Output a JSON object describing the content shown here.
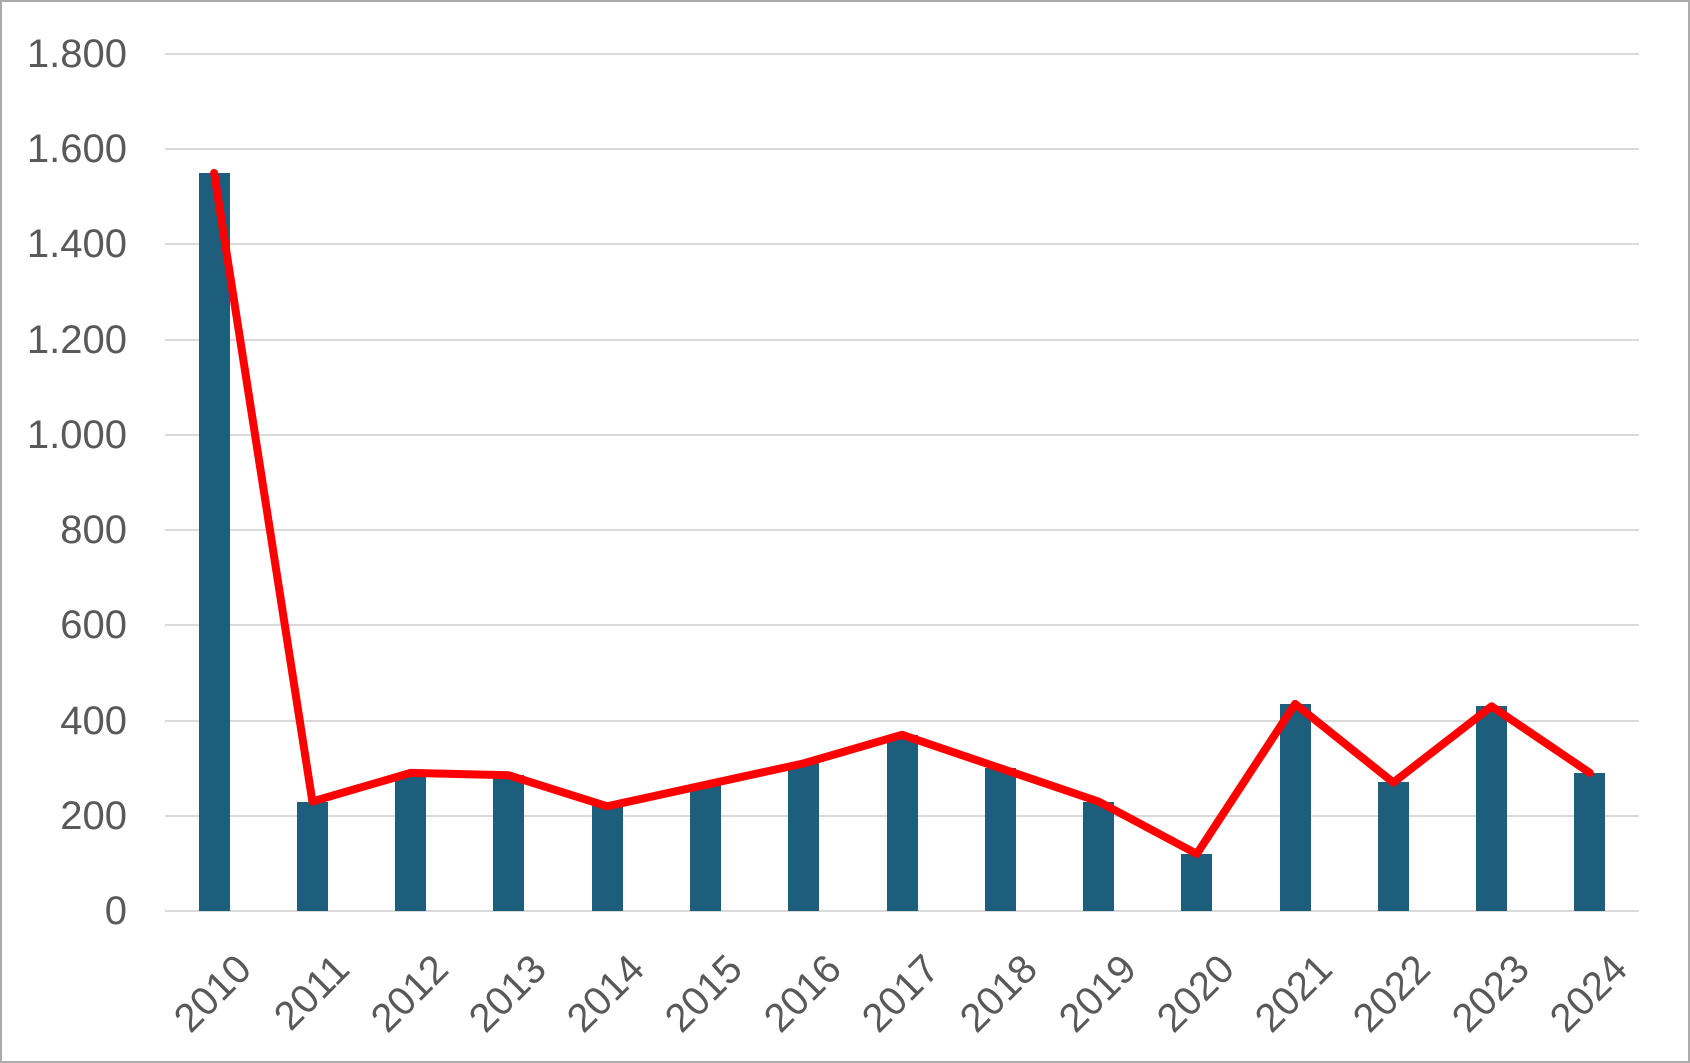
{
  "chart_data": {
    "type": "bar",
    "title": "",
    "xlabel": "",
    "ylabel": "",
    "categories": [
      "2010",
      "2011",
      "2012",
      "2013",
      "2014",
      "2015",
      "2016",
      "2017",
      "2018",
      "2019",
      "2020",
      "2021",
      "2022",
      "2023",
      "2024"
    ],
    "series": [
      {
        "name": "bars",
        "type": "bar",
        "color": "#1d5e7d",
        "values": [
          1550,
          230,
          290,
          285,
          220,
          265,
          310,
          370,
          300,
          230,
          120,
          435,
          270,
          430,
          290
        ]
      },
      {
        "name": "line",
        "type": "line",
        "color": "#ff0000",
        "values": [
          1550,
          230,
          290,
          285,
          220,
          265,
          310,
          370,
          300,
          230,
          120,
          435,
          270,
          430,
          290
        ]
      }
    ],
    "ylim": [
      0,
      1800
    ],
    "ytick_step": 200,
    "ytick_labels_bottom_to_top": [
      "0",
      "200",
      "400",
      "600",
      "800",
      "1.000",
      "1.200",
      "1.400",
      "1.600",
      "1.800"
    ],
    "number_format": "european (dot thousands separator)",
    "grid": true,
    "legend": false,
    "colors": {
      "bar": "#1d5e7d",
      "line": "#ff0000",
      "gridline": "#d9d9d9",
      "tick_label": "#595959",
      "canvas_border": "#ababab",
      "background": "#ffffff"
    }
  }
}
